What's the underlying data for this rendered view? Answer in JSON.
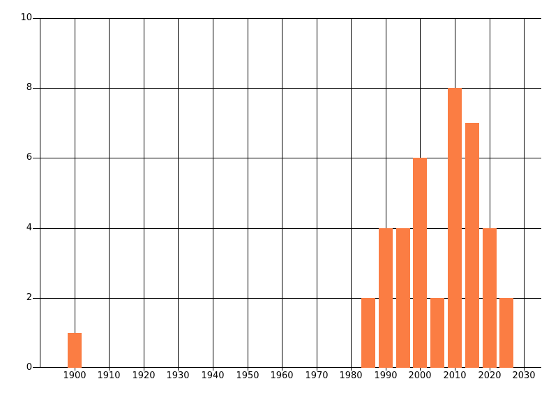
{
  "chart_data": {
    "type": "bar",
    "title": "",
    "xlabel": "",
    "ylabel": "",
    "x": [
      1900,
      1985,
      1990,
      1995,
      2000,
      2005,
      2010,
      2015,
      2020,
      2025
    ],
    "values": [
      1,
      2,
      4,
      4,
      6,
      2,
      8,
      7,
      4,
      2
    ],
    "bar_width_years": 4,
    "xlim": [
      1890,
      2035
    ],
    "ylim": [
      0,
      10
    ],
    "x_tick_values": [
      1900,
      1910,
      1920,
      1930,
      1940,
      1950,
      1960,
      1970,
      1980,
      1990,
      2000,
      2010,
      2020,
      2030
    ],
    "x_tick_labels": [
      "1900",
      "1910",
      "1920",
      "1930",
      "1940",
      "1950",
      "1960",
      "1970",
      "1980",
      "1990",
      "2000",
      "2010",
      "2020",
      "2030"
    ],
    "y_tick_values": [
      0,
      2,
      4,
      6,
      8,
      10
    ],
    "y_tick_labels": [
      "0",
      "2",
      "4",
      "6",
      "8",
      "10"
    ],
    "grid": true,
    "legend": false,
    "legend_position": "none",
    "colors": {
      "bar": "#fb7d43",
      "grid": "#000000",
      "axis": "#000000",
      "text": "#000000",
      "background": "#ffffff"
    }
  }
}
